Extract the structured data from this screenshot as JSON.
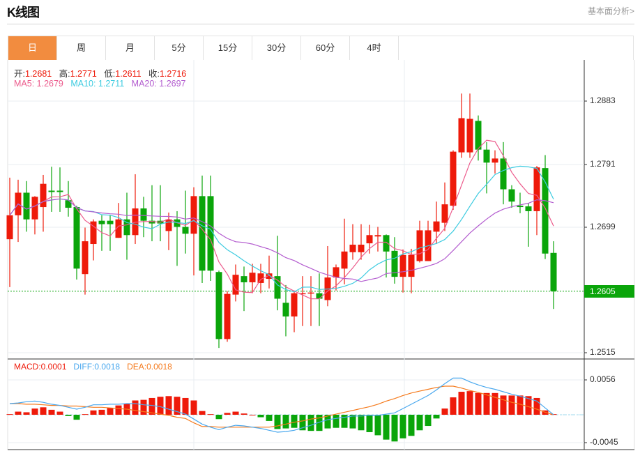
{
  "header": {
    "title": "K线图",
    "link": "基本面分析>"
  },
  "tabs": [
    {
      "label": "日",
      "active": true
    },
    {
      "label": "周"
    },
    {
      "label": "月"
    },
    {
      "label": "5分"
    },
    {
      "label": "15分"
    },
    {
      "label": "30分"
    },
    {
      "label": "60分"
    },
    {
      "label": "4时"
    }
  ],
  "legend": {
    "open_label": "开:",
    "open": "1.2681",
    "high_label": "高:",
    "high": "1.2771",
    "low_label": "低:",
    "low": "1.2611",
    "close_label": "收:",
    "close": "1.2716",
    "ma5_label": "MA5: ",
    "ma5": "1.2679",
    "ma10_label": "MA10: ",
    "ma10": "1.2711",
    "ma20_label": "MA20: ",
    "ma20": "1.2697",
    "macd_label": "MACD:",
    "macd": "0.0001",
    "diff_label": "DIFF:",
    "diff": "0.0018",
    "dea_label": "DEA:",
    "dea": "0.0018"
  },
  "price_axis": {
    "ticks": [
      "1.2883",
      "1.2791",
      "1.2699",
      "1.2515"
    ],
    "last_price": "1.2605"
  },
  "macd_axis": {
    "ticks": [
      "0.0056",
      "-0.0045"
    ]
  },
  "colors": {
    "up": "#ee1a0a",
    "down": "#0aa50a",
    "ma5": "#ec5b8c",
    "ma10": "#3ccbe0",
    "ma20": "#b35ccf",
    "diff": "#4aa8ee",
    "dea": "#f57a1c",
    "accent": "#f28c3f"
  },
  "chart_data": [
    {
      "type": "candlestick",
      "ylim": [
        1.248,
        1.294
      ],
      "ohlc": [
        [
          1.2681,
          1.2771,
          1.2611,
          1.2716
        ],
        [
          1.2716,
          1.2768,
          1.2677,
          1.2749
        ],
        [
          1.2749,
          1.2766,
          1.2692,
          1.271
        ],
        [
          1.271,
          1.2744,
          1.2688,
          1.2743
        ],
        [
          1.2728,
          1.2775,
          1.2692,
          1.2762
        ],
        [
          1.2752,
          1.2787,
          1.2721,
          1.275
        ],
        [
          1.2752,
          1.2786,
          1.2721,
          1.275
        ],
        [
          1.2738,
          1.2766,
          1.2714,
          1.2727
        ],
        [
          1.2728,
          1.273,
          1.2622,
          1.2638
        ],
        [
          1.263,
          1.2698,
          1.26,
          1.2678
        ],
        [
          1.2674,
          1.271,
          1.265,
          1.2707
        ],
        [
          1.2708,
          1.2716,
          1.2664,
          1.2703
        ],
        [
          1.2708,
          1.2716,
          1.2664,
          1.2703
        ],
        [
          1.2683,
          1.2734,
          1.2683,
          1.271
        ],
        [
          1.271,
          1.2749,
          1.2651,
          1.2687
        ],
        [
          1.2687,
          1.2776,
          1.2674,
          1.2726
        ],
        [
          1.2726,
          1.2743,
          1.2684,
          1.2708
        ],
        [
          1.2708,
          1.276,
          1.2678,
          1.2704
        ],
        [
          1.2708,
          1.276,
          1.2678,
          1.2704
        ],
        [
          1.2693,
          1.272,
          1.2665,
          1.271
        ],
        [
          1.271,
          1.2722,
          1.2642,
          1.2699
        ],
        [
          1.2699,
          1.2752,
          1.266,
          1.2689
        ],
        [
          1.2689,
          1.2757,
          1.2628,
          1.2744
        ],
        [
          1.2744,
          1.2774,
          1.2617,
          1.2635
        ],
        [
          1.2744,
          1.2774,
          1.262,
          1.2635
        ],
        [
          1.2633,
          1.2635,
          1.2522,
          1.2535
        ],
        [
          1.2535,
          1.2605,
          1.2531,
          1.2601
        ],
        [
          1.26,
          1.2644,
          1.259,
          1.2629
        ],
        [
          1.2627,
          1.2641,
          1.2576,
          1.2618
        ],
        [
          1.2618,
          1.2645,
          1.2602,
          1.2632
        ],
        [
          1.2617,
          1.2645,
          1.2602,
          1.2631
        ],
        [
          1.2623,
          1.2657,
          1.2609,
          1.2631
        ],
        [
          1.2627,
          1.2686,
          1.2577,
          1.2594
        ],
        [
          1.2588,
          1.2614,
          1.2539,
          1.2568
        ],
        [
          1.2568,
          1.2606,
          1.2545,
          1.2602
        ],
        [
          1.2601,
          1.2627,
          1.2554,
          1.2602
        ],
        [
          1.2602,
          1.2627,
          1.2554,
          1.2603
        ],
        [
          1.2602,
          1.2631,
          1.2554,
          1.2594
        ],
        [
          1.2592,
          1.2671,
          1.2583,
          1.2625
        ],
        [
          1.2625,
          1.2644,
          1.2606,
          1.264
        ],
        [
          1.2638,
          1.2711,
          1.2615,
          1.2663
        ],
        [
          1.2662,
          1.2703,
          1.2651,
          1.2673
        ],
        [
          1.2662,
          1.2703,
          1.2651,
          1.2673
        ],
        [
          1.2675,
          1.2702,
          1.266,
          1.2687
        ],
        [
          1.2685,
          1.2699,
          1.2663,
          1.2687
        ],
        [
          1.2687,
          1.2688,
          1.2625,
          1.2663
        ],
        [
          1.2664,
          1.2684,
          1.2616,
          1.2626
        ],
        [
          1.2626,
          1.2666,
          1.2603,
          1.2658
        ],
        [
          1.2626,
          1.2667,
          1.2602,
          1.2658
        ],
        [
          1.2649,
          1.2708,
          1.2647,
          1.2694
        ],
        [
          1.2649,
          1.2708,
          1.2649,
          1.2694
        ],
        [
          1.2692,
          1.2736,
          1.2674,
          1.2707
        ],
        [
          1.2705,
          1.2764,
          1.2693,
          1.2732
        ],
        [
          1.273,
          1.2811,
          1.2724,
          1.2809
        ],
        [
          1.2808,
          1.2894,
          1.28,
          1.2858
        ],
        [
          1.2808,
          1.2894,
          1.28,
          1.2857
        ],
        [
          1.2854,
          1.2862,
          1.2796,
          1.2812
        ],
        [
          1.2812,
          1.2823,
          1.2748,
          1.2793
        ],
        [
          1.2793,
          1.2811,
          1.2777,
          1.2799
        ],
        [
          1.2799,
          1.2823,
          1.2732,
          1.2754
        ],
        [
          1.2754,
          1.276,
          1.2727,
          1.2736
        ],
        [
          1.273,
          1.2749,
          1.2719,
          1.2728
        ],
        [
          1.2729,
          1.2734,
          1.267,
          1.2722
        ],
        [
          1.2722,
          1.2788,
          1.2687,
          1.2786
        ],
        [
          1.2785,
          1.2804,
          1.2652,
          1.266
        ],
        [
          1.2661,
          1.2678,
          1.2579,
          1.2605
        ]
      ],
      "series": [
        {
          "name": "MA5",
          "window": 5
        },
        {
          "name": "MA10",
          "window": 10
        },
        {
          "name": "MA20",
          "window": 20
        }
      ]
    },
    {
      "type": "bar",
      "ylim": [
        -0.005,
        0.0062
      ],
      "series": [
        {
          "name": "MACD",
          "values": [
            0.0001,
            0.0005,
            0.0004,
            0.001,
            0.0012,
            0.0008,
            0.0005,
            -0.0002,
            -0.0008,
            0.0001,
            0.0007,
            0.0008,
            0.0011,
            0.0015,
            0.0018,
            0.0023,
            0.0024,
            0.0027,
            0.0029,
            0.003,
            0.0029,
            0.0027,
            0.0023,
            0.0006,
            0.0001,
            -0.0007,
            0.0003,
            0.0005,
            0.0002,
            0.0,
            -0.0004,
            -0.001,
            -0.0023,
            -0.0022,
            -0.0021,
            -0.0025,
            -0.0026,
            -0.0026,
            -0.0022,
            -0.0021,
            -0.0021,
            -0.0022,
            -0.0025,
            -0.0028,
            -0.0033,
            -0.004,
            -0.0043,
            -0.0038,
            -0.0034,
            -0.0025,
            -0.0018,
            -0.0006,
            0.001,
            0.0028,
            0.0037,
            0.0038,
            0.0035,
            0.0035,
            0.0035,
            0.0031,
            0.0031,
            0.0031,
            0.003,
            0.0027,
            0.0007,
            0.0001
          ]
        },
        {
          "name": "DIFF",
          "values": [
            0.0018,
            0.0019,
            0.0021,
            0.0022,
            0.002,
            0.0017,
            0.0015,
            0.0012,
            0.0009,
            0.0012,
            0.0016,
            0.0016,
            0.0017,
            0.0017,
            0.0018,
            0.0018,
            0.0016,
            0.0015,
            0.0013,
            0.0009,
            0.0005,
            0.0001,
            -0.0007,
            -0.0015,
            -0.002,
            -0.0024,
            -0.002,
            -0.0017,
            -0.0018,
            -0.002,
            -0.0022,
            -0.0025,
            -0.0028,
            -0.0027,
            -0.0025,
            -0.0021,
            -0.0017,
            -0.0012,
            -0.0008,
            -0.0006,
            -0.0004,
            -0.0002,
            -0.0002,
            -0.0001,
            -0.0001,
            0.0001,
            0.0003,
            0.001,
            0.0017,
            0.0024,
            0.0031,
            0.004,
            0.005,
            0.0059,
            0.0059,
            0.0053,
            0.0048,
            0.0044,
            0.0041,
            0.0037,
            0.0033,
            0.003,
            0.0026,
            0.0022,
            0.0011,
            0.0
          ]
        },
        {
          "name": "DEA",
          "values": [
            0.0018,
            0.0018,
            0.0017,
            0.0017,
            0.0016,
            0.0015,
            0.0015,
            0.0014,
            0.0014,
            0.0013,
            0.0012,
            0.0012,
            0.0011,
            0.001,
            0.0009,
            0.0007,
            0.0005,
            0.0003,
            0.0001,
            -0.0001,
            -0.0004,
            -0.0006,
            -0.0013,
            -0.0019,
            -0.0019,
            -0.002,
            -0.002,
            -0.002,
            -0.002,
            -0.002,
            -0.002,
            -0.002,
            -0.0018,
            -0.0015,
            -0.0012,
            -0.001,
            -0.0007,
            -0.0005,
            -0.0002,
            0.0001,
            0.0004,
            0.0007,
            0.001,
            0.0013,
            0.0017,
            0.0022,
            0.0026,
            0.0031,
            0.0035,
            0.0038,
            0.0041,
            0.0044,
            0.0046,
            0.0046,
            0.0043,
            0.0039,
            0.0036,
            0.0032,
            0.0028,
            0.0024,
            0.002,
            0.0017,
            0.0013,
            0.0009,
            0.0004,
            0.0
          ]
        }
      ]
    }
  ]
}
